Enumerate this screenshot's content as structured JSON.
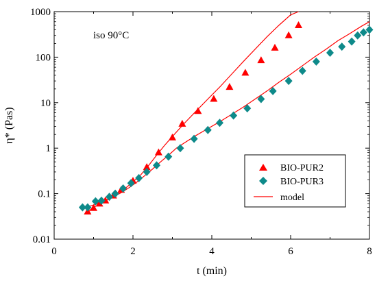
{
  "chart_data": {
    "type": "scatter",
    "title": "",
    "annotation": "iso 90°C",
    "xlabel": "t (min)",
    "ylabel": "η* (Pas)",
    "xlim": [
      0,
      8
    ],
    "ylim": [
      0.01,
      1000
    ],
    "yscale": "log",
    "x_ticks": [
      0,
      2,
      4,
      6,
      8
    ],
    "x_tick_labels": [
      "0",
      "2",
      "4",
      "6",
      "8"
    ],
    "y_ticks": [
      0.01,
      0.1,
      1,
      10,
      100,
      1000
    ],
    "y_tick_labels": [
      "0.01",
      "0.1",
      "1",
      "10",
      "100",
      "1000"
    ],
    "grid": false,
    "legend_position": "lower-right",
    "colors": {
      "pur2": "#ff0000",
      "pur3": "#0e8a8a",
      "model": "#ff0000"
    },
    "series": [
      {
        "name": "BIO-PUR2",
        "marker": "triangle",
        "color": "#ff0000",
        "x": [
          0.85,
          1.0,
          1.15,
          1.3,
          1.5,
          1.7,
          2.0,
          2.35,
          2.65,
          3.0,
          3.25,
          3.65,
          4.05,
          4.45,
          4.85,
          5.25,
          5.6,
          5.95,
          6.2
        ],
        "y": [
          0.04,
          0.048,
          0.06,
          0.07,
          0.09,
          0.12,
          0.19,
          0.38,
          0.8,
          1.7,
          3.4,
          6.5,
          12,
          22,
          45,
          85,
          160,
          300,
          500
        ]
      },
      {
        "name": "BIO-PUR3",
        "marker": "diamond",
        "color": "#0e8a8a",
        "x": [
          0.72,
          0.85,
          1.05,
          1.2,
          1.4,
          1.55,
          1.75,
          1.95,
          2.15,
          2.35,
          2.6,
          2.9,
          3.2,
          3.55,
          3.9,
          4.2,
          4.55,
          4.9,
          5.25,
          5.55,
          5.95,
          6.3,
          6.65,
          7.0,
          7.3,
          7.55,
          7.7,
          7.85,
          8.0
        ],
        "y": [
          0.05,
          0.05,
          0.068,
          0.07,
          0.085,
          0.1,
          0.13,
          0.17,
          0.22,
          0.3,
          0.42,
          0.65,
          1.0,
          1.6,
          2.5,
          3.6,
          5.2,
          7.5,
          12,
          18,
          30,
          50,
          80,
          125,
          170,
          220,
          300,
          350,
          400
        ]
      },
      {
        "name": "model",
        "type": "line",
        "color": "#ff0000",
        "curves": [
          {
            "x": [
              0.85,
              1.0,
              1.2,
              1.4,
              1.6,
              1.8,
              2.0,
              2.2,
              2.4,
              2.6,
              2.8,
              3.0,
              3.3,
              3.6,
              3.9,
              4.2,
              4.5,
              4.8,
              5.1,
              5.4,
              5.7,
              6.0,
              6.2
            ],
            "y": [
              0.04,
              0.05,
              0.062,
              0.078,
              0.1,
              0.13,
              0.18,
              0.26,
              0.42,
              0.7,
              1.15,
              1.8,
              3.5,
              6.5,
              12,
              22,
              42,
              80,
              150,
              280,
              500,
              850,
              1000
            ]
          },
          {
            "x": [
              0.7,
              0.9,
              1.1,
              1.3,
              1.5,
              1.7,
              1.9,
              2.1,
              2.3,
              2.5,
              2.7,
              2.9,
              3.1,
              3.3,
              3.6,
              3.9,
              4.2,
              4.5,
              4.8,
              5.1,
              5.4,
              5.7,
              6.0,
              6.3,
              6.6,
              6.9,
              7.2,
              7.5,
              7.8,
              8.0
            ],
            "y": [
              0.05,
              0.053,
              0.06,
              0.07,
              0.085,
              0.105,
              0.135,
              0.18,
              0.25,
              0.35,
              0.5,
              0.7,
              1.0,
              1.3,
              1.9,
              2.7,
              3.8,
              5.5,
              8.0,
              12,
              18,
              28,
              42,
              65,
              100,
              150,
              230,
              330,
              480,
              600
            ]
          }
        ]
      }
    ]
  }
}
